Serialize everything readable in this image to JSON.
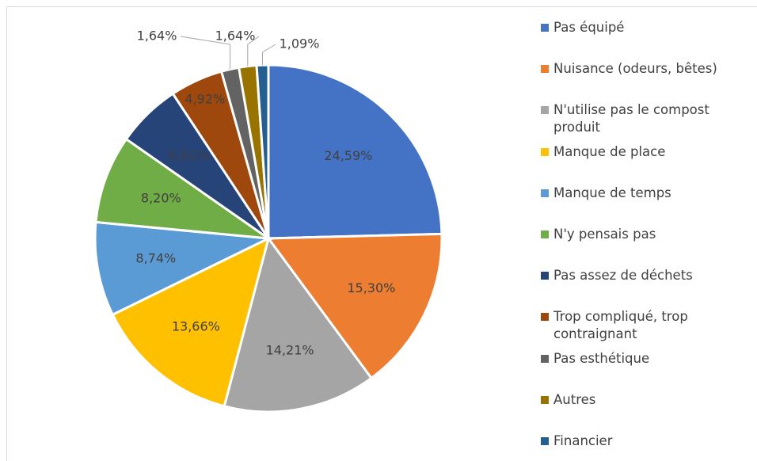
{
  "chart_data": {
    "type": "pie",
    "categories": [
      "Pas équipé",
      "Nuisance (odeurs, bêtes)",
      "N'utilise pas le compost produit",
      "Manque de place",
      "Manque de temps",
      "N'y pensais pas",
      "Pas assez de déchets",
      "Trop compliqué, trop contraignant",
      "Pas esthétique",
      "Autres",
      "Financier"
    ],
    "values": [
      24.59,
      15.3,
      14.21,
      13.66,
      8.74,
      8.2,
      6.01,
      4.92,
      1.64,
      1.64,
      1.09
    ],
    "value_labels": [
      "24,59%",
      "15,30%",
      "14,21%",
      "13,66%",
      "8,74%",
      "8,20%",
      "6,01%",
      "4,92%",
      "1,64%",
      "1,64%",
      "1,09%"
    ],
    "colors": [
      "#4472c4",
      "#ed7d31",
      "#a5a5a5",
      "#ffc000",
      "#5b9bd5",
      "#70ad47",
      "#264478",
      "#9e480e",
      "#636363",
      "#997300",
      "#255e91"
    ],
    "legend": "right"
  }
}
